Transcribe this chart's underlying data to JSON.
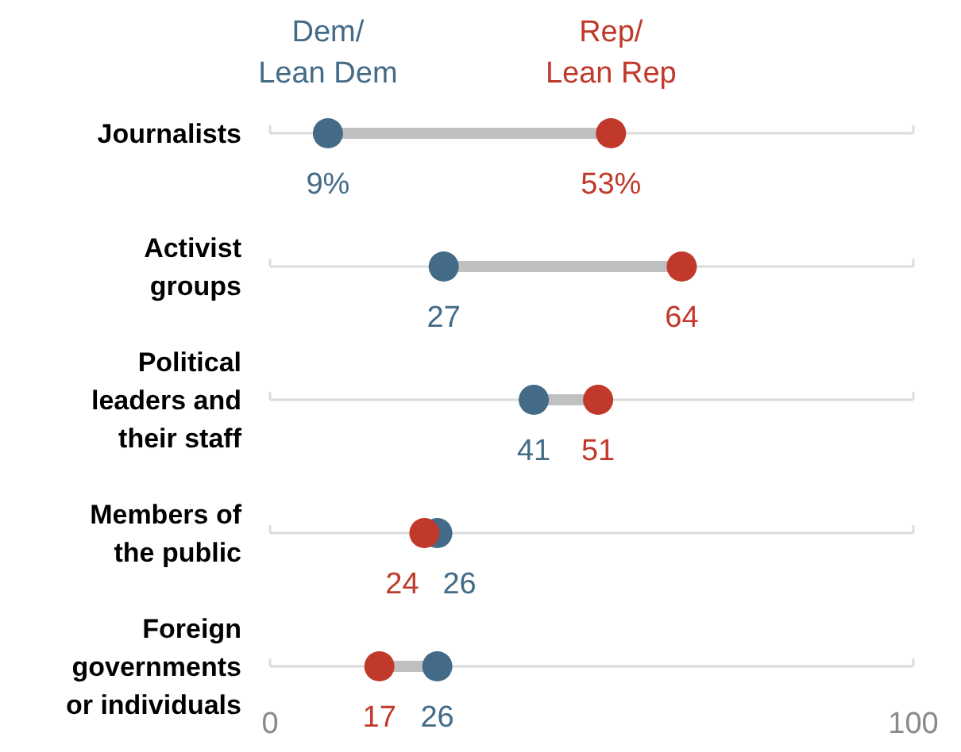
{
  "chart_data": {
    "type": "scatter",
    "orientation": "horizontal",
    "categories": [
      "Journalists",
      "Activist groups",
      "Political leaders and their staff",
      "Members of the public",
      "Foreign governments or individuals"
    ],
    "series": [
      {
        "name": "Dem/\nLean Dem",
        "color": "#436b88",
        "values": [
          9,
          27,
          41,
          26,
          26
        ],
        "value_labels": [
          "9%",
          "27",
          "41",
          "26",
          "26"
        ]
      },
      {
        "name": "Rep/\nLean Rep",
        "color": "#c0392b",
        "values": [
          53,
          64,
          51,
          24,
          17
        ],
        "value_labels": [
          "53%",
          "64",
          "51",
          "24",
          "17"
        ]
      }
    ],
    "xlim": [
      0,
      100
    ],
    "xticks": [
      0,
      100
    ],
    "grid": true,
    "legend": "top",
    "marker": "circle"
  }
}
